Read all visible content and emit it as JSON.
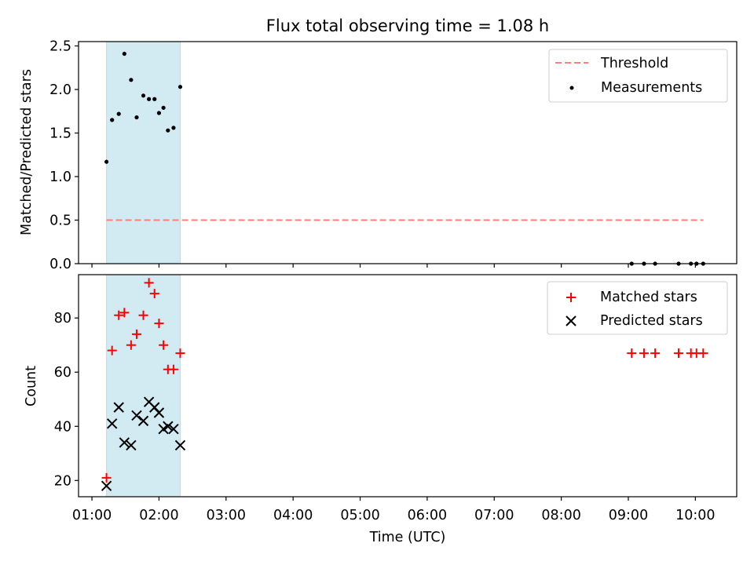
{
  "chart_data": [
    {
      "type": "scatter",
      "title": "Flux total observing time = 1.08 h",
      "xlabel": "",
      "ylabel": "Matched/Predicted stars",
      "ylim": [
        0,
        2.55
      ],
      "yticks": [
        "0.0",
        "0.5",
        "1.0",
        "1.5",
        "2.0",
        "2.5"
      ],
      "ytick_values": [
        0,
        0.5,
        1.0,
        1.5,
        2.0,
        2.5
      ],
      "legend_position": "top-right",
      "highlight_span": {
        "x_start": "01:13",
        "x_end": "02:19",
        "color": "#add8e6"
      },
      "threshold": {
        "name": "Threshold",
        "value": 0.5,
        "x_start": "01:13",
        "x_end": "10:07",
        "color": "#ff7f7f",
        "style": "dashed"
      },
      "series": [
        {
          "name": "Measurements",
          "color": "#000000",
          "marker": "dot",
          "x": [
            "01:13",
            "01:18",
            "01:24",
            "01:29",
            "01:35",
            "01:40",
            "01:46",
            "01:51",
            "01:56",
            "02:00",
            "02:04",
            "02:08",
            "02:13",
            "02:19",
            "09:03",
            "09:14",
            "09:24",
            "09:45",
            "09:56",
            "10:01",
            "10:07"
          ],
          "y": [
            1.17,
            1.65,
            1.72,
            2.41,
            2.11,
            1.68,
            1.93,
            1.89,
            1.89,
            1.73,
            1.79,
            1.53,
            1.56,
            2.03,
            0.0,
            0.0,
            0.0,
            0.0,
            0.0,
            0.0,
            0.0
          ]
        }
      ]
    },
    {
      "type": "scatter",
      "title": "",
      "xlabel": "Time (UTC)",
      "ylabel": "Count",
      "ylim": [
        14,
        96
      ],
      "yticks": [
        "20",
        "40",
        "60",
        "80"
      ],
      "ytick_values": [
        20,
        40,
        60,
        80
      ],
      "xlim": [
        "00:48",
        "10:37"
      ],
      "xticks": [
        "01:00",
        "02:00",
        "03:00",
        "04:00",
        "05:00",
        "06:00",
        "07:00",
        "08:00",
        "09:00",
        "10:00"
      ],
      "legend_position": "top-right",
      "highlight_span": {
        "x_start": "01:13",
        "x_end": "02:19",
        "color": "#add8e6"
      },
      "series": [
        {
          "name": "Matched stars",
          "color": "#ff0000",
          "marker": "plus",
          "x": [
            "01:13",
            "01:18",
            "01:24",
            "01:29",
            "01:35",
            "01:40",
            "01:46",
            "01:51",
            "01:56",
            "02:00",
            "02:04",
            "02:08",
            "02:13",
            "02:19",
            "09:03",
            "09:14",
            "09:24",
            "09:45",
            "09:56",
            "10:01",
            "10:07"
          ],
          "y": [
            21,
            68,
            81,
            82,
            70,
            74,
            81,
            93,
            89,
            78,
            70,
            61,
            61,
            67,
            67,
            67,
            67,
            67,
            67,
            67,
            67
          ]
        },
        {
          "name": "Predicted stars",
          "color": "#000000",
          "marker": "x",
          "x": [
            "01:13",
            "01:18",
            "01:24",
            "01:29",
            "01:35",
            "01:40",
            "01:46",
            "01:51",
            "01:56",
            "02:00",
            "02:04",
            "02:08",
            "02:13",
            "02:19"
          ],
          "y": [
            18,
            41,
            47,
            34,
            33,
            44,
            42,
            49,
            47,
            45,
            39,
            40,
            39,
            33
          ]
        }
      ]
    }
  ]
}
